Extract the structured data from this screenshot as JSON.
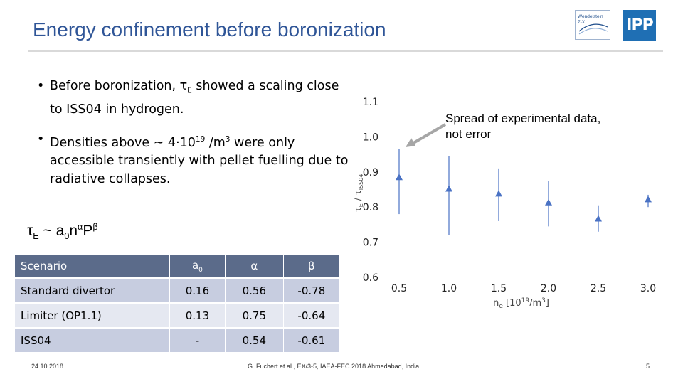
{
  "slide": {
    "title": "Energy confinement before boronization",
    "bullets": [
      {
        "a": "Before boronization, τ",
        "a_sub": "E",
        "b": " showed a scaling close to ISS04 in hydrogen."
      },
      {
        "a": "Densities above ~ 4·10",
        "a_sup": "19",
        "b": " /m",
        "b_sup": "3",
        "c": " were only accessible transiently with pellet fuelling due to radiative collapses."
      }
    ],
    "formula": {
      "tau": "τ",
      "tau_sub": "E",
      "mid": " ~ a",
      "a_sub": "0",
      "n": "n",
      "alpha": "α",
      "P": "P",
      "beta": "β"
    },
    "annotation": "Spread of experimental data, not error",
    "logos": {
      "w7x_line1": "Wendelstein",
      "w7x_line2": "7-X",
      "ipp": "IPP"
    }
  },
  "table": {
    "headers": {
      "scenario": "Scenario",
      "a0": "a",
      "a0_sub": "0",
      "alpha": "α",
      "beta": "β"
    },
    "rows": [
      {
        "scenario": "Standard divertor",
        "a0": "0.16",
        "alpha": "0.56",
        "beta": "-0.78"
      },
      {
        "scenario": "Limiter (OP1.1)",
        "a0": "0.13",
        "alpha": "0.75",
        "beta": "-0.64"
      },
      {
        "scenario": "ISS04",
        "a0": "-",
        "alpha": "0.54",
        "beta": "-0.61"
      }
    ]
  },
  "footer": {
    "date": "24.10.2018",
    "citation": "G. Fuchert et al., EX/3-5, IAEA-FEC 2018 Ahmedabad, India",
    "page": "5"
  },
  "chart_data": {
    "type": "scatter",
    "xlabel": {
      "main": "n",
      "sub": "e",
      "unit": " [10",
      "unit_sup": "19",
      "unit2": "/m",
      "unit2_sup": "3",
      "unit3": "]"
    },
    "ylabel": {
      "main": "τ",
      "sub": "E",
      "rest": " / τ",
      "sub2": "ISS04"
    },
    "xlim": [
      0.35,
      3.1
    ],
    "ylim": [
      0.6,
      1.1
    ],
    "xticks": [
      "0.5",
      "1.0",
      "1.5",
      "2.0",
      "2.5",
      "3.0"
    ],
    "yticks": [
      "0.6",
      "0.7",
      "0.8",
      "0.9",
      "1.0",
      "1.1"
    ],
    "points": [
      {
        "x": 0.5,
        "y": 0.885,
        "lo": 0.78,
        "hi": 0.965
      },
      {
        "x": 1.0,
        "y": 0.852,
        "lo": 0.72,
        "hi": 0.945
      },
      {
        "x": 1.5,
        "y": 0.838,
        "lo": 0.76,
        "hi": 0.91
      },
      {
        "x": 2.0,
        "y": 0.813,
        "lo": 0.745,
        "hi": 0.875
      },
      {
        "x": 2.5,
        "y": 0.767,
        "lo": 0.73,
        "hi": 0.805
      },
      {
        "x": 3.0,
        "y": 0.822,
        "lo": 0.8,
        "hi": 0.835
      }
    ],
    "color": "#4a72c4",
    "grid": false
  }
}
